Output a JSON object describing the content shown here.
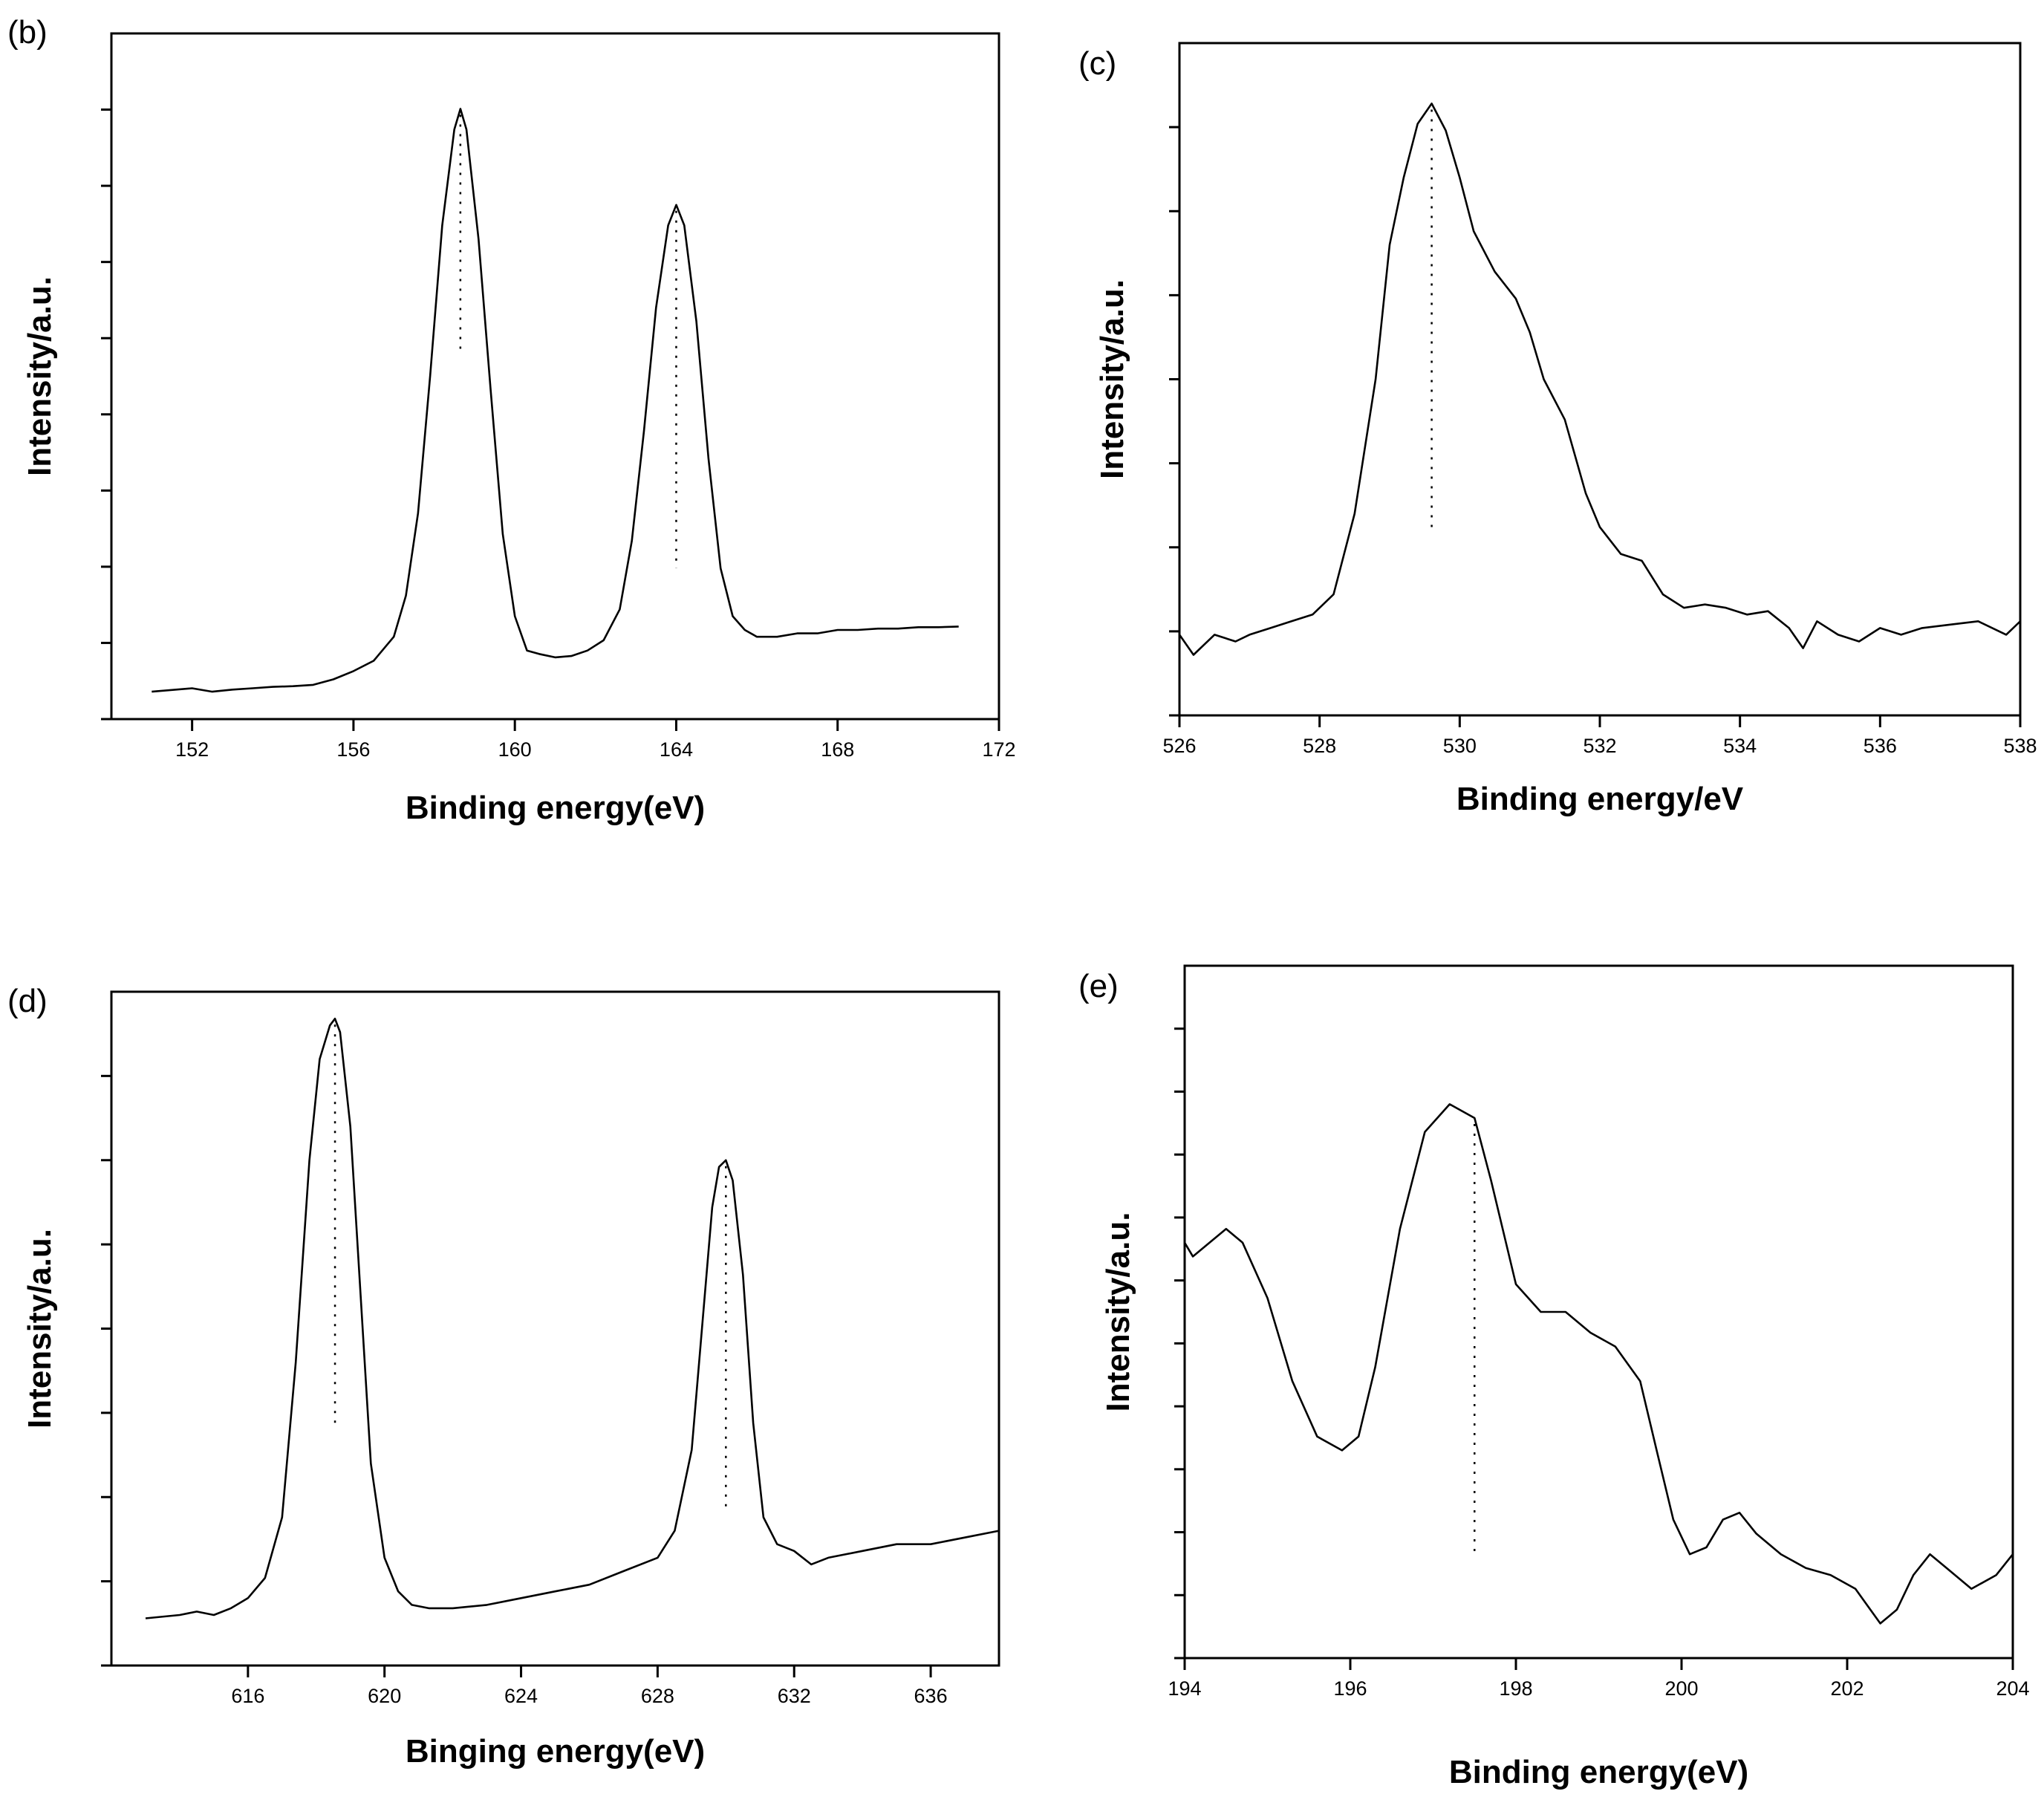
{
  "chart_data": [
    {
      "id": "b",
      "type": "line",
      "panel_label": "(b)",
      "xlabel": "Binding energy(eV)",
      "ylabel": "Intensity/a.u.",
      "xlim": [
        150,
        172
      ],
      "ylim": [
        0,
        1
      ],
      "x_ticks": [
        152,
        156,
        160,
        164,
        168,
        172
      ],
      "y_minor_ticks": 8,
      "y_tick_labels": false,
      "series": [
        {
          "name": "spectrum",
          "x": [
            151,
            152,
            152.5,
            153,
            153.5,
            154,
            154.5,
            155,
            155.5,
            156,
            156.5,
            157,
            157.3,
            157.6,
            157.9,
            158.2,
            158.5,
            158.65,
            158.8,
            159.1,
            159.4,
            159.7,
            160,
            160.3,
            160.6,
            161,
            161.4,
            161.8,
            162.2,
            162.6,
            162.9,
            163.2,
            163.5,
            163.8,
            164,
            164.2,
            164.5,
            164.8,
            165.1,
            165.4,
            165.7,
            166,
            166.5,
            167,
            167.5,
            168,
            168.5,
            169,
            169.5,
            170,
            170.5,
            171
          ],
          "y": [
            0.04,
            0.045,
            0.04,
            0.043,
            0.045,
            0.047,
            0.048,
            0.05,
            0.058,
            0.07,
            0.085,
            0.12,
            0.18,
            0.3,
            0.5,
            0.72,
            0.86,
            0.89,
            0.86,
            0.7,
            0.48,
            0.27,
            0.15,
            0.1,
            0.095,
            0.09,
            0.092,
            0.1,
            0.115,
            0.16,
            0.26,
            0.42,
            0.6,
            0.72,
            0.75,
            0.72,
            0.58,
            0.38,
            0.22,
            0.15,
            0.13,
            0.12,
            0.12,
            0.125,
            0.125,
            0.13,
            0.13,
            0.132,
            0.132,
            0.134,
            0.134,
            0.135
          ]
        }
      ],
      "peak_markers": [
        {
          "x": 158.65,
          "y_bottom": 0.53
        },
        {
          "x": 164,
          "y_bottom": 0.22
        }
      ]
    },
    {
      "id": "c",
      "type": "line",
      "panel_label": "(c)",
      "xlabel": "Binding energy/eV",
      "ylabel": "Intensity/a.u.",
      "xlim": [
        526,
        538
      ],
      "ylim": [
        0,
        1
      ],
      "x_ticks": [
        526,
        528,
        530,
        532,
        534,
        536,
        538
      ],
      "y_minor_ticks": 7,
      "y_tick_labels": false,
      "series": [
        {
          "name": "spectrum",
          "x": [
            526,
            526.2,
            526.5,
            526.8,
            527,
            527.3,
            527.6,
            527.9,
            528.2,
            528.5,
            528.8,
            529,
            529.2,
            529.4,
            529.6,
            529.8,
            530,
            530.2,
            530.5,
            530.8,
            531,
            531.2,
            531.5,
            531.8,
            532,
            532.3,
            532.6,
            532.9,
            533.2,
            533.5,
            533.8,
            534.1,
            534.4,
            534.7,
            534.9,
            535.1,
            535.4,
            535.7,
            536,
            536.3,
            536.6,
            537,
            537.4,
            537.8,
            538
          ],
          "y": [
            0.12,
            0.09,
            0.12,
            0.11,
            0.12,
            0.13,
            0.14,
            0.15,
            0.18,
            0.3,
            0.5,
            0.7,
            0.8,
            0.88,
            0.91,
            0.87,
            0.8,
            0.72,
            0.66,
            0.62,
            0.57,
            0.5,
            0.44,
            0.33,
            0.28,
            0.24,
            0.23,
            0.18,
            0.16,
            0.165,
            0.16,
            0.15,
            0.155,
            0.13,
            0.1,
            0.14,
            0.12,
            0.11,
            0.13,
            0.12,
            0.13,
            0.135,
            0.14,
            0.12,
            0.14
          ]
        }
      ],
      "peak_markers": [
        {
          "x": 529.6,
          "y_bottom": 0.28
        }
      ]
    },
    {
      "id": "d",
      "type": "line",
      "panel_label": "(d)",
      "xlabel": "Binging energy(eV)",
      "ylabel": "Intensity/a.u.",
      "xlim": [
        612,
        638
      ],
      "ylim": [
        0,
        1
      ],
      "x_ticks": [
        616,
        620,
        624,
        628,
        632,
        636
      ],
      "y_minor_ticks": 7,
      "y_tick_labels": false,
      "series": [
        {
          "name": "spectrum",
          "x": [
            613,
            614,
            614.5,
            615,
            615.5,
            616,
            616.5,
            617,
            617.4,
            617.8,
            618.1,
            618.4,
            618.55,
            618.7,
            619,
            619.3,
            619.6,
            620,
            620.4,
            620.8,
            621.3,
            622,
            623,
            624,
            625,
            626,
            627,
            628,
            628.5,
            629,
            629.3,
            629.6,
            629.8,
            630,
            630.2,
            630.5,
            630.8,
            631.1,
            631.5,
            632,
            632.5,
            633,
            634,
            635,
            636,
            637,
            638
          ],
          "y": [
            0.07,
            0.075,
            0.08,
            0.075,
            0.085,
            0.1,
            0.13,
            0.22,
            0.45,
            0.75,
            0.9,
            0.95,
            0.96,
            0.94,
            0.8,
            0.55,
            0.3,
            0.16,
            0.11,
            0.09,
            0.085,
            0.085,
            0.09,
            0.1,
            0.11,
            0.12,
            0.14,
            0.16,
            0.2,
            0.32,
            0.5,
            0.68,
            0.74,
            0.75,
            0.72,
            0.58,
            0.36,
            0.22,
            0.18,
            0.17,
            0.15,
            0.16,
            0.17,
            0.18,
            0.18,
            0.19,
            0.2
          ]
        }
      ],
      "peak_markers": [
        {
          "x": 618.55,
          "y_bottom": 0.35
        },
        {
          "x": 630,
          "y_bottom": 0.23
        }
      ]
    },
    {
      "id": "e",
      "type": "line",
      "panel_label": "(e)",
      "xlabel": "Binding energy(eV)",
      "ylabel": "Intensity/a.u.",
      "xlim": [
        194,
        204
      ],
      "ylim": [
        0,
        1
      ],
      "x_ticks": [
        194,
        196,
        198,
        200,
        202,
        204
      ],
      "y_minor_ticks": 10,
      "y_tick_labels": false,
      "series": [
        {
          "name": "spectrum",
          "x": [
            194,
            194.1,
            194.3,
            194.5,
            194.7,
            195,
            195.3,
            195.6,
            195.9,
            196.1,
            196.3,
            196.6,
            196.9,
            197.2,
            197.5,
            197.7,
            198,
            198.3,
            198.6,
            198.9,
            199.2,
            199.5,
            199.7,
            199.9,
            200.1,
            200.3,
            200.5,
            200.7,
            200.9,
            201.2,
            201.5,
            201.8,
            202.1,
            202.4,
            202.6,
            202.8,
            203,
            203.2,
            203.5,
            203.8,
            204
          ],
          "y": [
            0.6,
            0.58,
            0.6,
            0.62,
            0.6,
            0.52,
            0.4,
            0.32,
            0.3,
            0.32,
            0.42,
            0.62,
            0.76,
            0.8,
            0.78,
            0.69,
            0.54,
            0.5,
            0.5,
            0.47,
            0.45,
            0.4,
            0.3,
            0.2,
            0.15,
            0.16,
            0.2,
            0.21,
            0.18,
            0.15,
            0.13,
            0.12,
            0.1,
            0.05,
            0.07,
            0.12,
            0.15,
            0.13,
            0.1,
            0.12,
            0.15
          ]
        }
      ],
      "peak_markers": [
        {
          "x": 197.5,
          "y_bottom": 0.15
        }
      ]
    }
  ]
}
